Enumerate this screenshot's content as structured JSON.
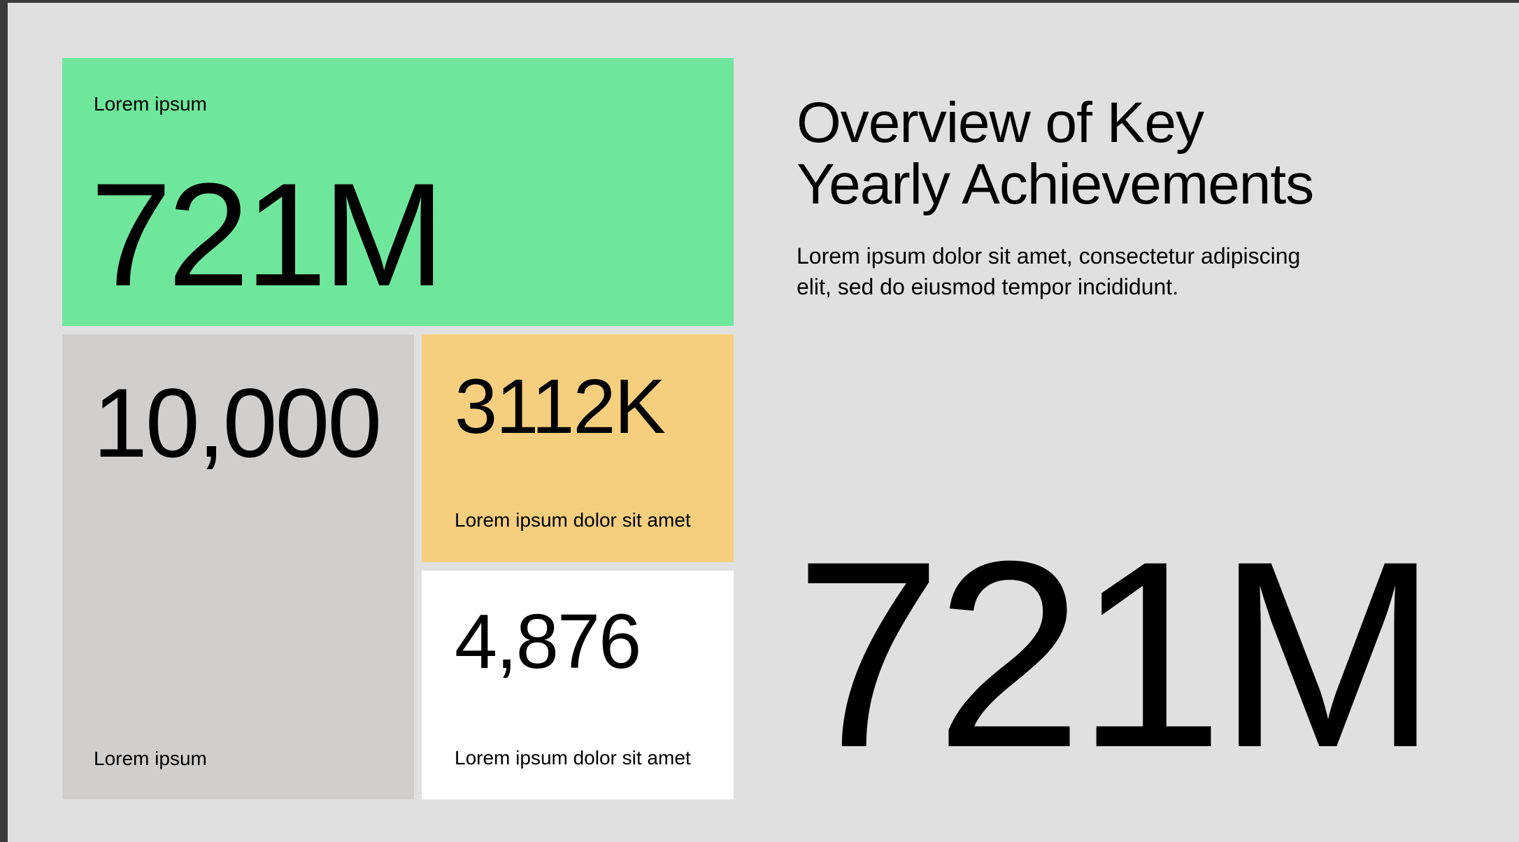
{
  "colors": {
    "background": "#e0e0e0",
    "green": "#6ee79c",
    "grey": "#d0cfcd",
    "yellow": "#f6cf7e",
    "white": "#ffffff",
    "text": "#000000"
  },
  "cards": {
    "green": {
      "label": "Lorem ipsum",
      "value": "721M"
    },
    "grey": {
      "value": "10,000",
      "label": "Lorem ipsum"
    },
    "yellow": {
      "value": "3112K",
      "label": "Lorem ipsum dolor sit amet"
    },
    "white": {
      "value": "4,876",
      "label": "Lorem ipsum dolor sit amet"
    }
  },
  "overview": {
    "title_line1": "Overview of Key",
    "title_line2": "Yearly Achievements",
    "description_line1": "Lorem ipsum dolor sit amet, consectetur adipiscing",
    "description_line2": "elit, sed do eiusmod tempor incididunt.",
    "big_value": "721M"
  }
}
